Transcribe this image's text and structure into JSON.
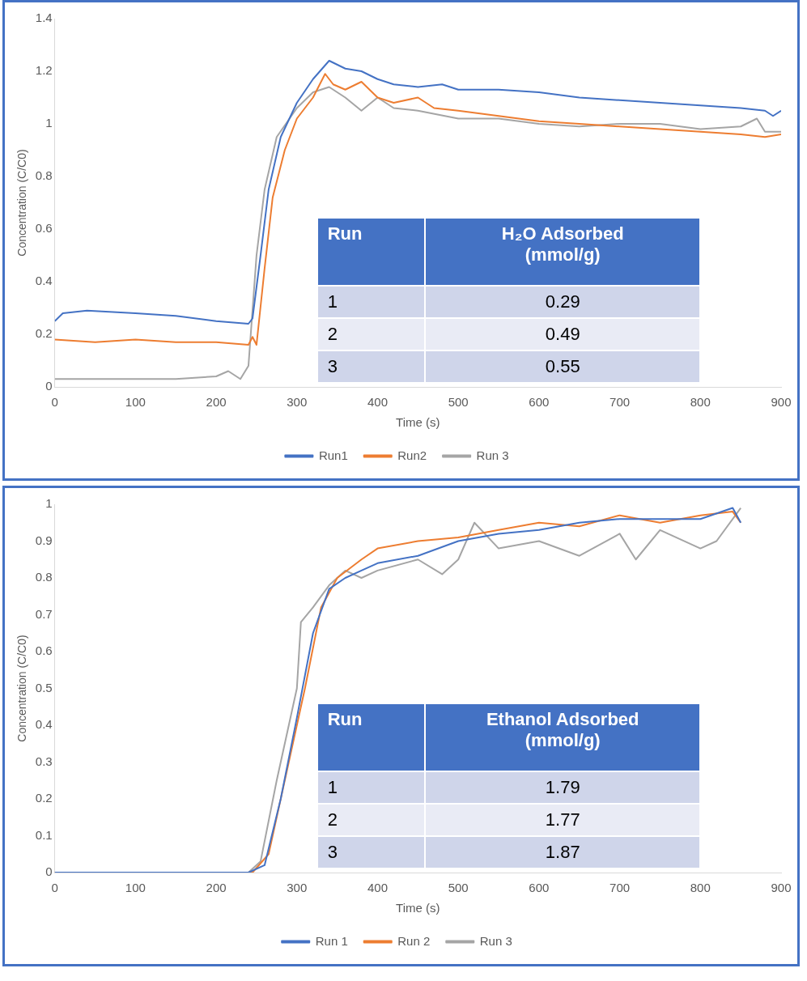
{
  "chart_data": [
    {
      "type": "line",
      "xlabel": "Time (s)",
      "ylabel": "Concentration (C/C0)",
      "xlim": [
        0,
        900
      ],
      "xticks": [
        0,
        100,
        200,
        300,
        400,
        500,
        600,
        700,
        800,
        900
      ],
      "ylim": [
        0,
        1.4
      ],
      "yticks": [
        0,
        0.2,
        0.4,
        0.6,
        0.8,
        1,
        1.2,
        1.4
      ],
      "grid": false,
      "legend": "bottom",
      "marker": "none",
      "line_style": "solid",
      "annotations": [
        "Run",
        "H₂O Adsorbed (mmol/g)",
        "1",
        "0.29",
        "2",
        "0.49",
        "3",
        "0.55"
      ],
      "series": [
        {
          "name": "Run1",
          "color": "#4472c4",
          "x": [
            0,
            10,
            40,
            100,
            150,
            200,
            240,
            245,
            255,
            265,
            280,
            300,
            320,
            340,
            360,
            380,
            400,
            420,
            450,
            480,
            500,
            550,
            600,
            650,
            700,
            750,
            800,
            850,
            880,
            890,
            900
          ],
          "values": [
            0.25,
            0.28,
            0.29,
            0.28,
            0.27,
            0.25,
            0.24,
            0.26,
            0.5,
            0.75,
            0.95,
            1.08,
            1.17,
            1.24,
            1.21,
            1.2,
            1.17,
            1.15,
            1.14,
            1.15,
            1.13,
            1.13,
            1.12,
            1.1,
            1.09,
            1.08,
            1.07,
            1.06,
            1.05,
            1.03,
            1.05
          ]
        },
        {
          "name": "Run2",
          "color": "#ed7d31",
          "x": [
            0,
            50,
            100,
            150,
            200,
            240,
            245,
            250,
            260,
            270,
            285,
            300,
            320,
            335,
            345,
            360,
            380,
            400,
            420,
            450,
            470,
            500,
            550,
            600,
            650,
            700,
            750,
            800,
            850,
            880,
            900
          ],
          "values": [
            0.18,
            0.17,
            0.18,
            0.17,
            0.17,
            0.16,
            0.19,
            0.16,
            0.45,
            0.72,
            0.9,
            1.02,
            1.1,
            1.19,
            1.15,
            1.13,
            1.16,
            1.1,
            1.08,
            1.1,
            1.06,
            1.05,
            1.03,
            1.01,
            1,
            0.99,
            0.98,
            0.97,
            0.96,
            0.95,
            0.96
          ]
        },
        {
          "name": "Run 3",
          "color": "#a5a5a5",
          "x": [
            0,
            50,
            100,
            150,
            200,
            215,
            230,
            240,
            250,
            260,
            275,
            300,
            320,
            340,
            360,
            380,
            400,
            420,
            450,
            500,
            550,
            600,
            650,
            700,
            750,
            800,
            850,
            870,
            880,
            900
          ],
          "values": [
            0.03,
            0.03,
            0.03,
            0.03,
            0.04,
            0.06,
            0.03,
            0.08,
            0.5,
            0.75,
            0.95,
            1.06,
            1.12,
            1.14,
            1.1,
            1.05,
            1.1,
            1.06,
            1.05,
            1.02,
            1.02,
            1,
            0.99,
            1,
            1,
            0.98,
            0.99,
            1.02,
            0.97,
            0.97
          ]
        }
      ]
    },
    {
      "type": "line",
      "xlabel": "Time (s)",
      "ylabel": "Concentration (C/C0)",
      "xlim": [
        0,
        900
      ],
      "xticks": [
        0,
        100,
        200,
        300,
        400,
        500,
        600,
        700,
        800,
        900
      ],
      "ylim": [
        0,
        1
      ],
      "yticks": [
        0,
        0.1,
        0.2,
        0.3,
        0.4,
        0.5,
        0.6,
        0.7,
        0.8,
        0.9,
        1
      ],
      "grid": false,
      "legend": "bottom",
      "marker": "none",
      "line_style": "solid",
      "annotations": [
        "Run",
        "Ethanol Adsorbed (mmol/g)",
        "1",
        "1.79",
        "2",
        "1.77",
        "3",
        "1.87"
      ],
      "series": [
        {
          "name": "Run 1",
          "color": "#4472c4",
          "x": [
            0,
            240,
            260,
            280,
            300,
            320,
            340,
            360,
            380,
            400,
            450,
            500,
            550,
            600,
            650,
            700,
            750,
            800,
            840,
            850
          ],
          "values": [
            0,
            0,
            0.02,
            0.2,
            0.42,
            0.65,
            0.77,
            0.8,
            0.82,
            0.84,
            0.86,
            0.9,
            0.92,
            0.93,
            0.95,
            0.96,
            0.96,
            0.96,
            0.99,
            0.95
          ]
        },
        {
          "name": "Run 2",
          "color": "#ed7d31",
          "x": [
            0,
            245,
            265,
            290,
            310,
            330,
            350,
            380,
            400,
            450,
            500,
            550,
            600,
            650,
            700,
            750,
            800,
            840,
            850
          ],
          "values": [
            0,
            0,
            0.05,
            0.3,
            0.5,
            0.72,
            0.8,
            0.85,
            0.88,
            0.9,
            0.91,
            0.93,
            0.95,
            0.94,
            0.97,
            0.95,
            0.97,
            0.98,
            0.95
          ]
        },
        {
          "name": "Run 3",
          "color": "#a5a5a5",
          "x": [
            0,
            240,
            255,
            275,
            290,
            300,
            305,
            320,
            340,
            360,
            380,
            400,
            450,
            480,
            500,
            520,
            550,
            600,
            650,
            700,
            720,
            750,
            800,
            820,
            850
          ],
          "values": [
            0,
            0,
            0.03,
            0.25,
            0.4,
            0.5,
            0.68,
            0.72,
            0.78,
            0.82,
            0.8,
            0.82,
            0.85,
            0.81,
            0.85,
            0.95,
            0.88,
            0.9,
            0.86,
            0.92,
            0.85,
            0.93,
            0.88,
            0.9,
            0.99
          ]
        }
      ]
    }
  ]
}
